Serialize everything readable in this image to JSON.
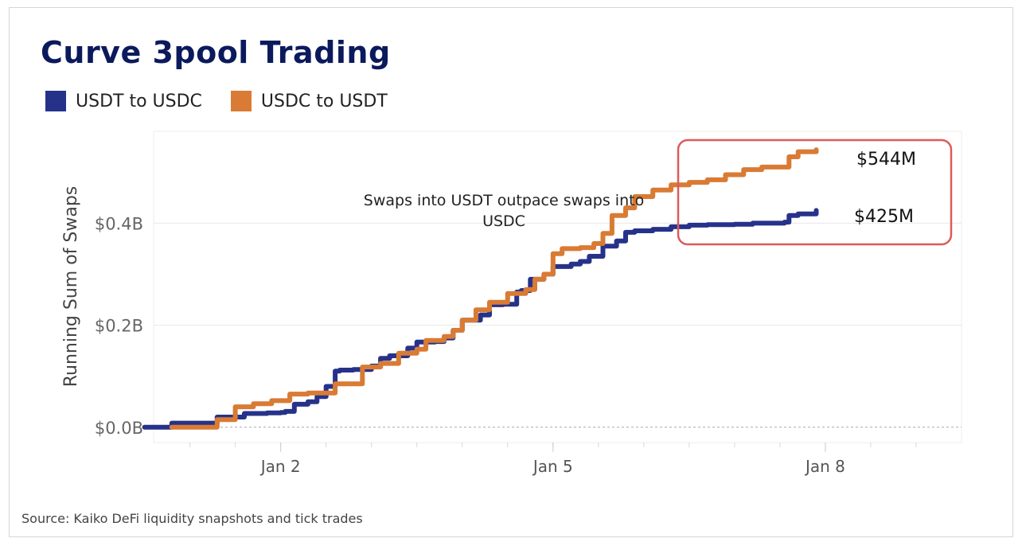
{
  "title": "Curve 3pool Trading",
  "source": "Source: Kaiko DeFi liquidity snapshots and tick trades",
  "colors": {
    "usdt_to_usdc": "#26328a",
    "usdc_to_usdt": "#d97b34",
    "highlight_box": "#de5a5a",
    "title": "#0b1a5c"
  },
  "chart_data": {
    "type": "line",
    "title": "Curve 3pool Trading",
    "xlabel": "",
    "ylabel": "Running Sum of Swaps",
    "x_tick_labels": [
      "Jan 2",
      "Jan 5",
      "Jan 8"
    ],
    "x_ticks": [
      2,
      5,
      8
    ],
    "xlim": [
      0.6,
      9.5
    ],
    "y_tick_labels": [
      "$0.0B",
      "$0.2B",
      "$0.4B"
    ],
    "y_ticks": [
      0,
      0.2,
      0.4
    ],
    "ylim": [
      -0.03,
      0.58
    ],
    "legend": [
      "USDT to USDC",
      "USDC to USDT"
    ],
    "legend_position": "top-left",
    "series": [
      {
        "name": "USDT to USDC",
        "color": "#26328a",
        "x": [
          0.5,
          0.7,
          0.8,
          0.8,
          1.3,
          1.3,
          1.6,
          1.6,
          1.85,
          2.0,
          2.05,
          2.15,
          2.3,
          2.4,
          2.5,
          2.6,
          2.65,
          2.8,
          3.0,
          3.1,
          3.2,
          3.4,
          3.5,
          3.7,
          3.8,
          3.9,
          4.0,
          4.2,
          4.3,
          4.45,
          4.6,
          4.65,
          4.75,
          4.9,
          5.0,
          5.2,
          5.3,
          5.4,
          5.55,
          5.7,
          5.8,
          5.9,
          6.1,
          6.3,
          6.5,
          6.7,
          7.0,
          7.2,
          7.4,
          7.55,
          7.6,
          7.7,
          7.9
        ],
        "y": [
          0.0,
          0.0,
          0.006,
          0.008,
          0.01,
          0.02,
          0.025,
          0.027,
          0.028,
          0.029,
          0.031,
          0.045,
          0.05,
          0.06,
          0.08,
          0.11,
          0.112,
          0.113,
          0.12,
          0.135,
          0.14,
          0.155,
          0.167,
          0.168,
          0.175,
          0.19,
          0.21,
          0.22,
          0.24,
          0.241,
          0.265,
          0.268,
          0.29,
          0.3,
          0.315,
          0.32,
          0.325,
          0.335,
          0.355,
          0.365,
          0.382,
          0.385,
          0.388,
          0.393,
          0.396,
          0.397,
          0.398,
          0.4,
          0.4,
          0.402,
          0.415,
          0.418,
          0.425
        ]
      },
      {
        "name": "USDC to USDT",
        "color": "#d97b34",
        "x": [
          0.8,
          1.1,
          1.3,
          1.5,
          1.7,
          1.9,
          2.1,
          2.3,
          2.6,
          2.9,
          3.1,
          3.3,
          3.5,
          3.6,
          3.8,
          3.9,
          4.0,
          4.15,
          4.3,
          4.5,
          4.7,
          4.8,
          4.9,
          5.0,
          5.1,
          5.3,
          5.45,
          5.55,
          5.65,
          5.8,
          5.9,
          6.1,
          6.3,
          6.5,
          6.7,
          6.9,
          7.1,
          7.3,
          7.5,
          7.6,
          7.7,
          7.9
        ],
        "y": [
          0.0,
          0.0,
          0.015,
          0.04,
          0.046,
          0.052,
          0.065,
          0.067,
          0.085,
          0.118,
          0.125,
          0.145,
          0.153,
          0.17,
          0.178,
          0.19,
          0.21,
          0.23,
          0.245,
          0.262,
          0.27,
          0.29,
          0.3,
          0.34,
          0.35,
          0.352,
          0.36,
          0.38,
          0.415,
          0.43,
          0.452,
          0.465,
          0.475,
          0.48,
          0.485,
          0.495,
          0.505,
          0.51,
          0.51,
          0.53,
          0.54,
          0.544
        ]
      }
    ],
    "end_labels": [
      "$544M",
      "$425M"
    ],
    "annotation": [
      "Swaps into USDT outpace swaps into",
      "USDC"
    ]
  }
}
